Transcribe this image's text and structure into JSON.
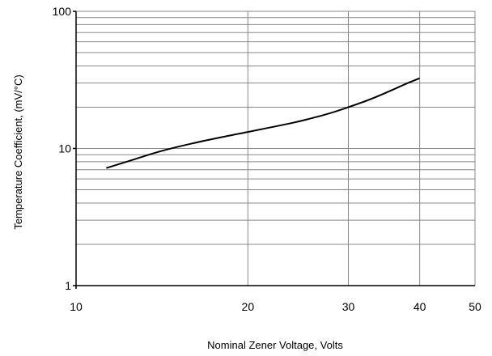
{
  "chart_data": {
    "type": "line",
    "title": "",
    "xlabel": "Nominal Zener Voltage, Volts",
    "ylabel": "Temperature Coefficient, (mV/°C)",
    "xscale": "log",
    "yscale": "log",
    "xlim": [
      10,
      50
    ],
    "ylim": [
      1,
      100
    ],
    "grid": true,
    "x_ticks": [
      10,
      20,
      30,
      40,
      50
    ],
    "x_tick_labels": [
      "10",
      "20",
      "30",
      "40",
      "50"
    ],
    "y_ticks": [
      1,
      10,
      100
    ],
    "y_tick_labels": [
      "1",
      "10",
      "100"
    ],
    "series": [
      {
        "x": [
          11.3,
          12.5,
          14,
          16,
          18,
          20,
          22,
          24,
          26,
          28,
          30,
          32,
          34,
          36,
          38,
          40
        ],
        "y": [
          7.2,
          8.2,
          9.5,
          10.9,
          12.1,
          13.2,
          14.3,
          15.4,
          16.7,
          18.2,
          20.0,
          22.0,
          24.3,
          27.0,
          29.8,
          32.5
        ]
      }
    ],
    "colors": {
      "line": "#000000",
      "grid": "#888888",
      "axis": "#000000"
    }
  }
}
